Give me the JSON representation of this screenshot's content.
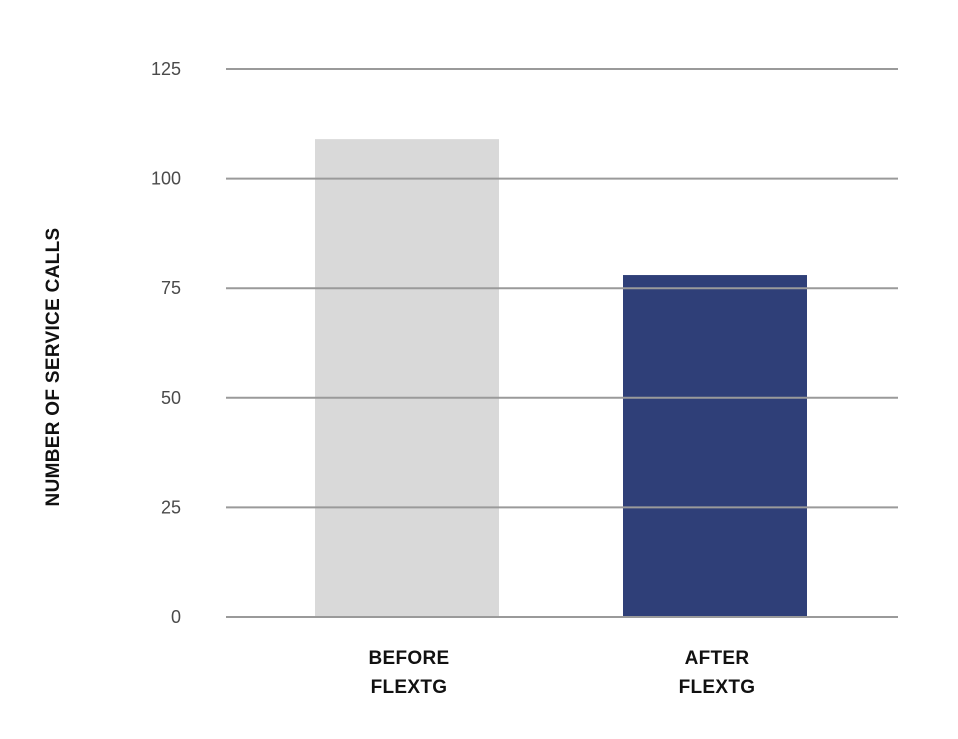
{
  "chart_data": {
    "type": "bar",
    "categories": [
      [
        "BEFORE",
        "FLEXTG"
      ],
      [
        "AFTER",
        "FLEXTG"
      ]
    ],
    "values": [
      109,
      78
    ],
    "colors": [
      "#d9d9d9",
      "#2f3f78"
    ],
    "title": "",
    "xlabel": "",
    "ylabel": "NUMBER OF SERVICE CALLS",
    "ylim": [
      0,
      125
    ],
    "yticks": [
      0,
      25,
      50,
      75,
      100,
      125
    ],
    "grid": true,
    "gridline_color": "#9a9a9a"
  }
}
